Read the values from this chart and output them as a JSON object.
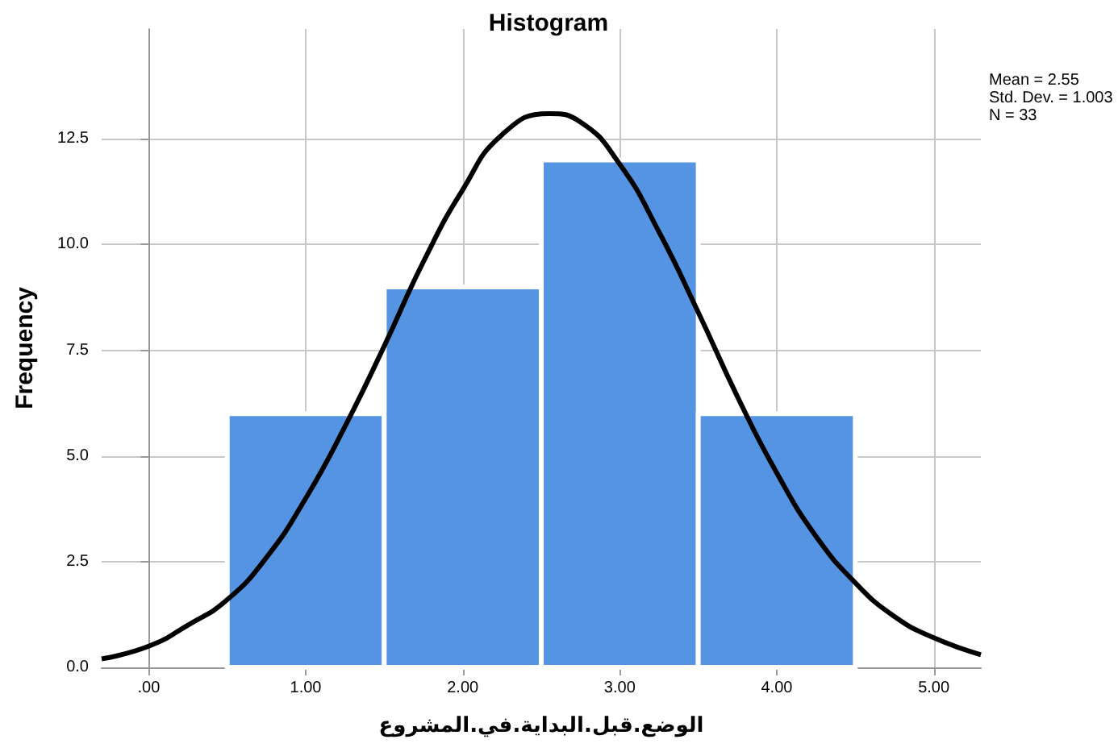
{
  "chart_data": {
    "type": "histogram",
    "title": "Histogram",
    "xlabel": "الوضع.قبل.البداية.في.المشروع",
    "ylabel": "Frequency",
    "annotations": [
      "Mean = 2.55",
      "Std. Dev. = 1.003",
      "N = 33"
    ],
    "series": [
      {
        "color": "#5593e3",
        "bins": [
          0.5,
          1.5,
          2.5,
          3.5,
          4.5
        ],
        "values": [
          6,
          9,
          12,
          6
        ]
      },
      {
        "type": "line",
        "color": "#000000",
        "x": [
          -0.3,
          0,
          0.25,
          0.5,
          0.75,
          1,
          1.25,
          1.5,
          1.75,
          2,
          2.25,
          2.55,
          2.75,
          3,
          3.25,
          3.5,
          3.75,
          4,
          4.25,
          4.5,
          4.75,
          5,
          5.3
        ],
        "values": [
          0.2,
          0.5,
          1.0,
          1.6,
          2.6,
          4.0,
          5.7,
          7.6,
          9.6,
          11.3,
          12.6,
          13.1,
          12.9,
          11.9,
          10.3,
          8.4,
          6.4,
          4.6,
          3.1,
          2.0,
          1.2,
          0.7,
          0.3
        ]
      }
    ],
    "xlim": [
      -0.3,
      5.3
    ],
    "xticks": [
      {
        "value": 0,
        "label": ".00"
      },
      {
        "value": 1,
        "label": "1.00"
      },
      {
        "value": 2,
        "label": "2.00"
      },
      {
        "value": 3,
        "label": "3.00"
      },
      {
        "value": 4,
        "label": "4.00"
      },
      {
        "value": 5,
        "label": "5.00"
      }
    ],
    "ylim": [
      0,
      15.1
    ],
    "yticks": [
      {
        "value": 0,
        "label": "0.0"
      },
      2.5,
      {
        "value": 5,
        "label": "5.0"
      },
      7.5,
      {
        "value": 10,
        "label": "10.0"
      },
      12.5
    ],
    "grid": true,
    "marker": "none",
    "line_style": "solid"
  }
}
